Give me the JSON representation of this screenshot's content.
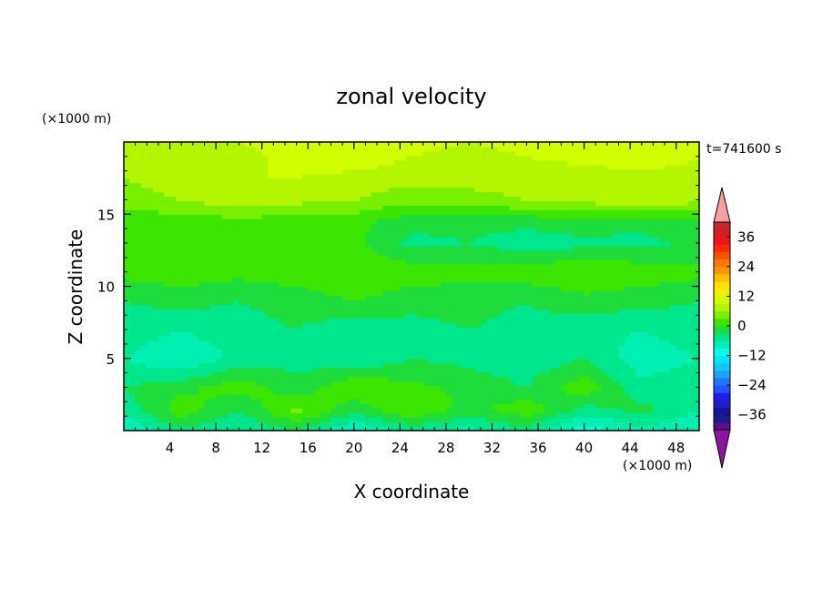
{
  "chart_data": {
    "type": "heatmap",
    "title": "zonal velocity",
    "xlabel": "X coordinate",
    "ylabel": "Z coordinate",
    "x_unit": "(×1000 m)",
    "y_unit": "(×1000 m)",
    "time_label": "t=741600 s",
    "xlim": [
      0,
      50
    ],
    "ylim": [
      0,
      20
    ],
    "x_ticks": [
      4,
      8,
      12,
      16,
      20,
      24,
      28,
      32,
      36,
      40,
      44,
      48
    ],
    "y_ticks": [
      5,
      10,
      15
    ],
    "colorbar": {
      "levels": [
        -42,
        -39,
        -36,
        -33,
        -30,
        -27,
        -24,
        -21,
        -18,
        -15,
        -12,
        -9,
        -6,
        -3,
        0,
        3,
        6,
        9,
        12,
        15,
        18,
        21,
        24,
        27,
        30,
        33,
        36,
        39,
        42
      ],
      "colors": [
        "#5a0f8c",
        "#1c1c8e",
        "#14149e",
        "#1e1ec8",
        "#1e1ef0",
        "#2850ff",
        "#1e78f0",
        "#1ea0ff",
        "#14c8ff",
        "#00e6ff",
        "#00ffe1",
        "#00f0b4",
        "#00e68c",
        "#1edc3c",
        "#3ce600",
        "#78f000",
        "#b4f500",
        "#d2ff00",
        "#f0f000",
        "#ffe100",
        "#ffbe00",
        "#ff9600",
        "#ff7800",
        "#ff5000",
        "#ff2800",
        "#f01414",
        "#d21e1e",
        "#c82828"
      ],
      "under_color": "#8c14a0",
      "over_color": "#f5a0a0",
      "tick_labels": [
        "36",
        "24",
        "12",
        "0",
        "−12",
        "−24",
        "−36"
      ],
      "tick_values": [
        36,
        24,
        12,
        0,
        -12,
        -24,
        -36
      ]
    },
    "field_summary": {
      "x_nodes": [
        0,
        5,
        10,
        15,
        20,
        25,
        30,
        35,
        40,
        45,
        50
      ],
      "z_nodes": [
        0,
        1.5,
        3,
        5,
        7,
        9,
        11,
        13,
        14.5,
        16,
        17.5,
        19,
        20
      ],
      "values": [
        [
          -9,
          -4,
          -6,
          -3,
          -9,
          -5,
          -7,
          -4,
          -11,
          -7,
          -8
        ],
        [
          -5,
          2,
          -3,
          4,
          -2,
          3,
          -1,
          2,
          -4,
          -2,
          -6
        ],
        [
          -3,
          -1,
          2,
          -2,
          3,
          1,
          -1,
          -3,
          2,
          -5,
          -4
        ],
        [
          -6,
          -9,
          -5,
          -4,
          -6,
          -3,
          -4,
          -5,
          -3,
          -8,
          -6
        ],
        [
          -4,
          -6,
          -4,
          -3,
          -5,
          -4,
          -3,
          -4,
          -5,
          -6,
          -4
        ],
        [
          -3,
          -2,
          -3,
          -2,
          0,
          -2,
          -2,
          -3,
          -1,
          -2,
          -3
        ],
        [
          1,
          2,
          1,
          2,
          3,
          2,
          1,
          2,
          3,
          2,
          1
        ],
        [
          2,
          1,
          2,
          1,
          1,
          -4,
          -3,
          -5,
          -4,
          -4,
          -2
        ],
        [
          1,
          1,
          2,
          1,
          1,
          -2,
          -2,
          -2,
          -1,
          -2,
          -1
        ],
        [
          5,
          6,
          8,
          7,
          6,
          4,
          5,
          6,
          7,
          8,
          7
        ],
        [
          6,
          7,
          9,
          9,
          8,
          7,
          7,
          7,
          7,
          7,
          7
        ],
        [
          9,
          8,
          8,
          10,
          11,
          9,
          8,
          9,
          10,
          12,
          9
        ],
        [
          8,
          8,
          9,
          10,
          11,
          10,
          9,
          10,
          11,
          12,
          10
        ]
      ]
    }
  }
}
